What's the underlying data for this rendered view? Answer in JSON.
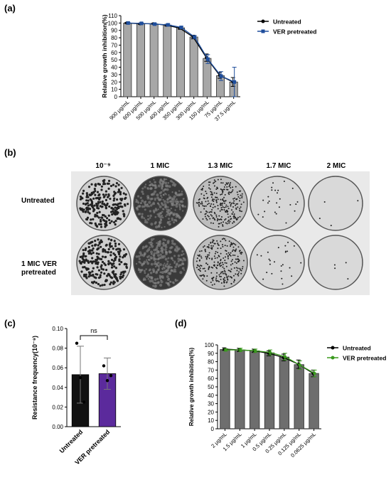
{
  "labels": {
    "a": "(a)",
    "b": "(b)",
    "c": "(c)",
    "d": "(d)"
  },
  "chart_data": [
    {
      "id": "a",
      "type": "bar",
      "title": "",
      "xlabel": "",
      "ylabel": "Relative growth inhibition(%)",
      "ylim": [
        0,
        110
      ],
      "yticks": [
        0,
        10,
        20,
        30,
        40,
        50,
        60,
        70,
        80,
        90,
        100,
        110
      ],
      "categories": [
        "900 μg/mL",
        "600 μg/mL",
        "500 μg/mL",
        "400 μg/mL",
        "350 μg/mL",
        "300 μg/mL",
        "150 μg/mL",
        "75 μg/mL",
        "37.5 μg/mL"
      ],
      "bar_color": "#a7a7a7",
      "series": [
        {
          "name": "Untreated",
          "color": "#000000",
          "marker": "dot",
          "values": [
            100,
            99,
            99,
            97,
            93,
            81,
            53,
            29,
            20
          ],
          "errors": [
            0.8,
            0.8,
            0.8,
            1.2,
            1.5,
            2.5,
            5,
            4,
            6
          ]
        },
        {
          "name": "VER pretreated",
          "color": "#1f4e9c",
          "marker": "square",
          "values": [
            100,
            99.5,
            98.5,
            97.5,
            94,
            81,
            51,
            28,
            20
          ],
          "errors": [
            0.8,
            0.8,
            0.8,
            1.2,
            1.5,
            2,
            6,
            6,
            20
          ]
        }
      ],
      "legend": "top-right"
    },
    {
      "id": "c",
      "type": "bar",
      "title": "",
      "xlabel": "",
      "ylabel": "Resistance frequency(10⁻⁹)",
      "ylim": [
        0,
        0.1
      ],
      "yticks": [
        "0.00",
        "0.02",
        "0.04",
        "0.06",
        "0.08",
        "0.10"
      ],
      "categories": [
        "Untreated",
        "VER pretreated"
      ],
      "colors": [
        "#111111",
        "#5b2a9c"
      ],
      "values": [
        0.053,
        0.054
      ],
      "errors": [
        0.029,
        0.016
      ],
      "points": [
        [
          0.085,
          0.05,
          0.025
        ],
        [
          0.062,
          0.047,
          0.052
        ]
      ],
      "annotation": "ns"
    },
    {
      "id": "d",
      "type": "bar",
      "title": "",
      "xlabel": "",
      "ylabel": "Relative growth inhibition(%)",
      "ylim": [
        0,
        100
      ],
      "yticks": [
        0,
        10,
        20,
        30,
        40,
        50,
        60,
        70,
        80,
        90,
        100
      ],
      "categories": [
        "2 μg/mL",
        "1.5 μg/mL",
        "1 μg/mL",
        "0.5 μg/mL",
        "0.25 μg/mL",
        "0.125 μg/mL",
        "0.0625 μg/mL"
      ],
      "bar_color": "#6e6e6e",
      "series": [
        {
          "name": "Untreated",
          "color": "#000000",
          "marker": "dot",
          "values": [
            95,
            94,
            93,
            90,
            85,
            77,
            66
          ],
          "errors": [
            1.5,
            2,
            2,
            3,
            4,
            5,
            4
          ]
        },
        {
          "name": "VER pretreated",
          "color": "#3a9a1e",
          "marker": "dot",
          "values": [
            94,
            94,
            93,
            91,
            86,
            76,
            66
          ],
          "errors": [
            1.5,
            2,
            2,
            3,
            4,
            5,
            4
          ]
        }
      ],
      "legend": "top-right"
    }
  ],
  "plates": {
    "columns": [
      "10⁻⁹",
      "1 MIC",
      "1.3 MIC",
      "1.7 MIC",
      "2 MIC"
    ],
    "rows": [
      "Untreated",
      "1 MIC VER pretreated"
    ]
  }
}
